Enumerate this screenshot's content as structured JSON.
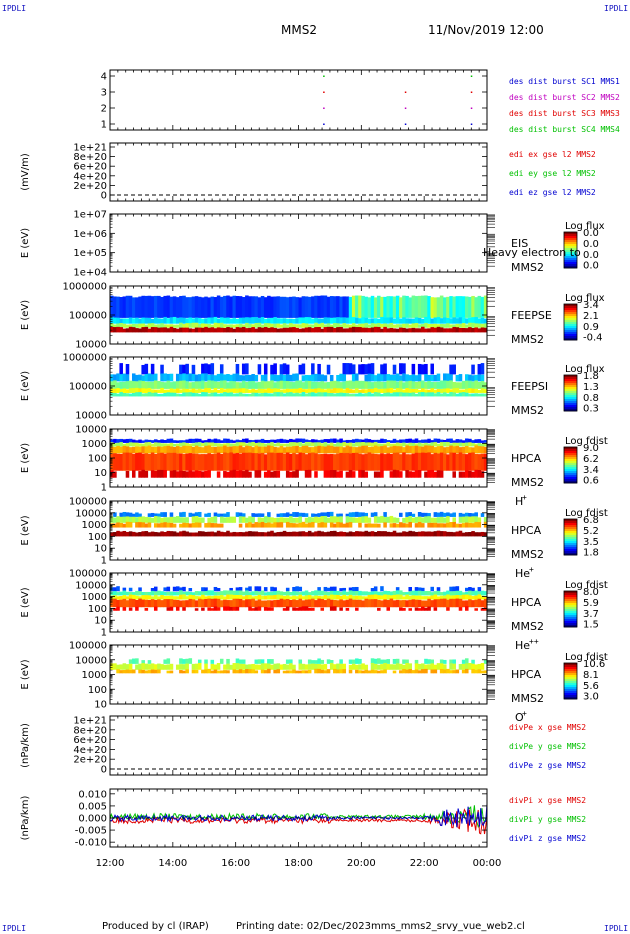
{
  "corners": {
    "tl": "IPDLI",
    "tr": "IPDLI",
    "bl": "IPDLI",
    "br": "IPDLI"
  },
  "header": {
    "title": "MMS2",
    "date": "11/Nov/2019 12:00"
  },
  "footer": {
    "produced": "Produced by cl (IRAP)",
    "printing": "Printing date: 02/Dec/2023",
    "script": "mms_mms2_srvy_vue_web2.cl"
  },
  "colors": {
    "red": "#e00000",
    "green": "#00c000",
    "blue": "#0000d0",
    "magenta": "#c000c0"
  },
  "chart_data": [
    {
      "type": "scatter",
      "name": "burst",
      "ylabel": "",
      "yticks": [
        "4",
        "3",
        "2",
        "1"
      ],
      "legend": [
        {
          "label": "des dist burst SC1 MMS1",
          "color": "#0000d0"
        },
        {
          "label": "des dist burst SC2 MMS2",
          "color": "#c000c0"
        },
        {
          "label": "des dist burst SC3 MMS3",
          "color": "#e00000"
        },
        {
          "label": "des dist burst SC4 MMS4",
          "color": "#00c000"
        }
      ],
      "points": [
        {
          "t": 18.8,
          "y": 4
        },
        {
          "t": 18.8,
          "y": 3
        },
        {
          "t": 18.8,
          "y": 2
        },
        {
          "t": 18.8,
          "y": 1
        },
        {
          "t": 21.4,
          "y": 3
        },
        {
          "t": 21.4,
          "y": 2
        },
        {
          "t": 21.4,
          "y": 1
        },
        {
          "t": 23.5,
          "y": 4
        },
        {
          "t": 23.5,
          "y": 3
        },
        {
          "t": 23.5,
          "y": 2
        },
        {
          "t": 23.5,
          "y": 1
        }
      ]
    },
    {
      "type": "line",
      "name": "edi",
      "ylabel": "(mV/m)",
      "yticks": [
        "1e+21",
        "8e+20",
        "6e+20",
        "4e+20",
        "2e+20",
        "0"
      ],
      "legend": [
        {
          "label": "edi ex gse l2 MMS2",
          "color": "#e00000"
        },
        {
          "label": "edi ey gse l2 MMS2",
          "color": "#00c000"
        },
        {
          "label": "edi ez gse l2 MMS2",
          "color": "#0000d0"
        }
      ]
    },
    {
      "type": "heatmap",
      "name": "eis",
      "ylabel": "E (eV)",
      "yticks": [
        "1e+07",
        "1e+06",
        "1e+05",
        "1e+04"
      ],
      "instrument": [
        "EIS",
        "MMS2"
      ],
      "overlay": "Heavy electron to",
      "colorbar": {
        "title": "Log flux",
        "ticks": [
          "0.0",
          "0.0",
          "0.0",
          "0.0"
        ]
      }
    },
    {
      "type": "heatmap",
      "name": "feepse",
      "ylabel": "E (eV)",
      "yticks": [
        "1000000",
        "100000",
        "10000"
      ],
      "instrument": [
        "FEEPSE",
        "MMS2"
      ],
      "colorbar": {
        "title": "Log flux",
        "ticks": [
          "3.4",
          "2.1",
          "0.9",
          "-0.4"
        ]
      }
    },
    {
      "type": "heatmap",
      "name": "feepsi",
      "ylabel": "E (eV)",
      "yticks": [
        "1000000",
        "100000",
        "10000"
      ],
      "instrument": [
        "FEEPSI",
        "MMS2"
      ],
      "colorbar": {
        "title": "Log flux",
        "ticks": [
          "1.8",
          "1.3",
          "0.8",
          "0.3"
        ]
      }
    },
    {
      "type": "heatmap",
      "name": "hpca-h",
      "ylabel": "E (eV)",
      "yticks": [
        "10000",
        "1000",
        "100",
        "10",
        "1"
      ],
      "instrument": [
        "HPCA",
        "MMS2",
        "H",
        "+"
      ],
      "colorbar": {
        "title": "Log fdist",
        "ticks": [
          "9.0",
          "6.2",
          "3.4",
          "0.6"
        ]
      }
    },
    {
      "type": "heatmap",
      "name": "hpca-he",
      "ylabel": "E (eV)",
      "yticks": [
        "100000",
        "10000",
        "1000",
        "100",
        "10",
        "1"
      ],
      "instrument": [
        "HPCA",
        "MMS2",
        "He",
        "+"
      ],
      "colorbar": {
        "title": "Log fdist",
        "ticks": [
          "6.8",
          "5.2",
          "3.5",
          "1.8"
        ]
      }
    },
    {
      "type": "heatmap",
      "name": "hpca-hepp",
      "ylabel": "E (eV)",
      "yticks": [
        "100000",
        "10000",
        "1000",
        "100",
        "10",
        "1"
      ],
      "instrument": [
        "HPCA",
        "MMS2",
        "He",
        "++"
      ],
      "colorbar": {
        "title": "Log fdist",
        "ticks": [
          "8.0",
          "5.9",
          "3.7",
          "1.5"
        ]
      }
    },
    {
      "type": "heatmap",
      "name": "hpca-o",
      "ylabel": "E (eV)",
      "yticks": [
        "100000",
        "10000",
        "1000",
        "100",
        "10"
      ],
      "instrument": [
        "HPCA",
        "MMS2",
        "O",
        "+"
      ],
      "colorbar": {
        "title": "Log fdist",
        "ticks": [
          "10.6",
          "8.1",
          "5.6",
          "3.0"
        ]
      }
    },
    {
      "type": "line",
      "name": "divpe",
      "ylabel": "(nPa/km)",
      "yticks": [
        "1e+21",
        "8e+20",
        "6e+20",
        "4e+20",
        "2e+20",
        "0"
      ],
      "legend": [
        {
          "label": "divPe x gse MMS2",
          "color": "#e00000"
        },
        {
          "label": "divPe y gse MMS2",
          "color": "#00c000"
        },
        {
          "label": "divPe z gse MMS2",
          "color": "#0000d0"
        }
      ]
    },
    {
      "type": "line",
      "name": "divpi",
      "ylabel": "(nPa/km)",
      "yticks": [
        "0.010",
        "0.005",
        "0.000",
        "-0.005",
        "-0.010"
      ],
      "ylim": [
        -0.012,
        0.012
      ],
      "legend": [
        {
          "label": "divPi x gse MMS2",
          "color": "#e00000"
        },
        {
          "label": "divPi y gse MMS2",
          "color": "#00c000"
        },
        {
          "label": "divPi z gse MMS2",
          "color": "#0000d0"
        }
      ]
    }
  ],
  "xaxis": {
    "ticks": [
      "12:00",
      "14:00",
      "16:00",
      "18:00",
      "20:00",
      "22:00",
      "00:00"
    ],
    "range": [
      12,
      24
    ]
  }
}
